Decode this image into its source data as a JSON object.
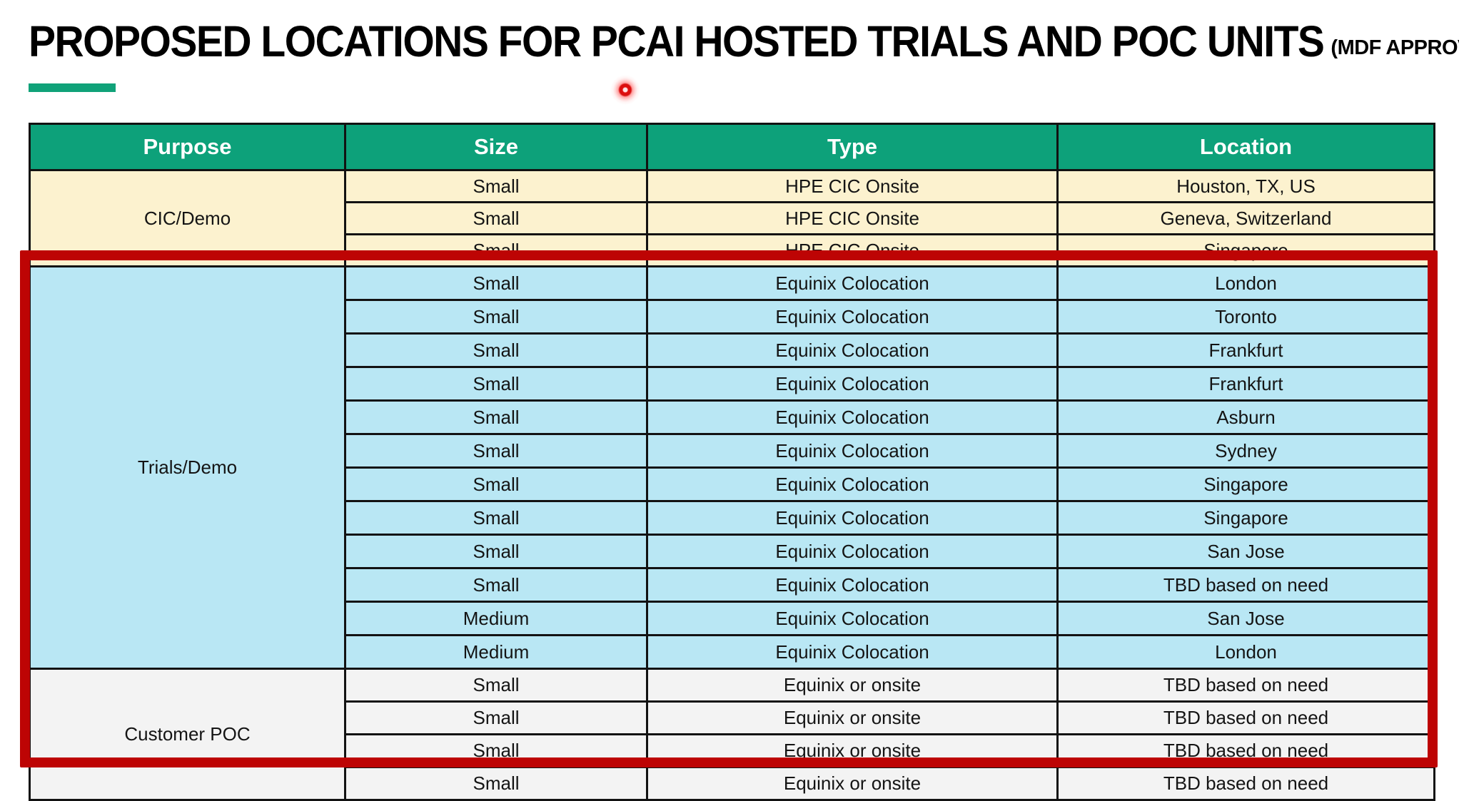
{
  "slide": {
    "title": "PROPOSED LOCATIONS FOR PCAI HOSTED TRIALS AND POC UNITS",
    "title_suffix": "(MDF APPROVED)"
  },
  "colors": {
    "header_green": "#0DA17A",
    "accent_bar_green": "#10A279",
    "cream_row": "#FCF2CF",
    "blue_row": "#B9E7F4",
    "gray_row": "#F3F3F3",
    "highlight_red": "#BD0404",
    "laser_dot_red": "#E01010"
  },
  "table": {
    "columns": [
      "Purpose",
      "Size",
      "Type",
      "Location"
    ],
    "sections": [
      {
        "purpose": "CIC/Demo",
        "theme": "cream",
        "highlighted": false,
        "rows": [
          [
            "Small",
            "HPE CIC Onsite",
            "Houston, TX, US"
          ],
          [
            "Small",
            "HPE CIC Onsite",
            "Geneva, Switzerland"
          ],
          [
            "Small",
            "HPE CIC Onsite",
            "Singapore"
          ]
        ]
      },
      {
        "purpose": "Trials/Demo",
        "theme": "blue",
        "highlighted": true,
        "rows": [
          [
            "Small",
            "Equinix Colocation",
            "London"
          ],
          [
            "Small",
            "Equinix Colocation",
            "Toronto"
          ],
          [
            "Small",
            "Equinix Colocation",
            "Frankfurt"
          ],
          [
            "Small",
            "Equinix Colocation",
            "Frankfurt"
          ],
          [
            "Small",
            "Equinix Colocation",
            "Asburn"
          ],
          [
            "Small",
            "Equinix Colocation",
            "Sydney"
          ],
          [
            "Small",
            "Equinix Colocation",
            "Singapore"
          ],
          [
            "Small",
            "Equinix Colocation",
            "Singapore"
          ],
          [
            "Small",
            "Equinix Colocation",
            "San Jose"
          ],
          [
            "Small",
            "Equinix Colocation",
            "TBD based on need"
          ],
          [
            "Medium",
            "Equinix Colocation",
            "San Jose"
          ],
          [
            "Medium",
            "Equinix Colocation",
            "London"
          ]
        ]
      },
      {
        "purpose": "Customer POC",
        "theme": "gray",
        "highlighted": true,
        "rows": [
          [
            "Small",
            "Equinix or onsite",
            "TBD based on need"
          ],
          [
            "Small",
            "Equinix or onsite",
            "TBD based on need"
          ],
          [
            "Small",
            "Equinix or onsite",
            "TBD based on need"
          ],
          [
            "Small",
            "Equinix or onsite",
            "TBD based on need"
          ]
        ]
      }
    ]
  }
}
